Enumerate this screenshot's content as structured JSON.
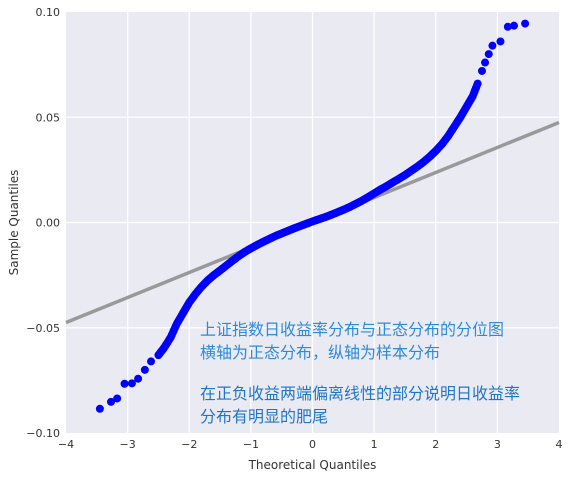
{
  "chart_data": {
    "type": "scatter",
    "title": "",
    "xlabel": "Theoretical Quantiles",
    "ylabel": "Sample Quantiles",
    "xlim": [
      -4,
      4
    ],
    "ylim": [
      -0.1,
      0.1
    ],
    "x_ticks": [
      "−4",
      "−3",
      "−2",
      "−1",
      "0",
      "1",
      "2",
      "3",
      "4"
    ],
    "y_ticks": [
      "−0.10",
      "−0.05",
      "0.00",
      "0.05",
      "0.10"
    ],
    "grid": true,
    "background_color": "#eaeaf2",
    "marker_color": "#0000ff",
    "line_color": "#999999",
    "reference_line": {
      "x": [
        -4,
        4
      ],
      "y": [
        -0.0475,
        0.0475
      ]
    },
    "points": [
      {
        "x": -3.45,
        "y": -0.0885
      },
      {
        "x": -3.27,
        "y": -0.0852
      },
      {
        "x": -3.17,
        "y": -0.0836
      },
      {
        "x": -3.05,
        "y": -0.0766
      },
      {
        "x": -2.93,
        "y": -0.0764
      },
      {
        "x": -2.83,
        "y": -0.0742
      },
      {
        "x": -2.72,
        "y": -0.07
      },
      {
        "x": -2.62,
        "y": -0.066
      },
      {
        "x": -2.5,
        "y": -0.063
      },
      {
        "x": -2.4,
        "y": -0.0592
      },
      {
        "x": -2.3,
        "y": -0.0545
      },
      {
        "x": -2.2,
        "y": -0.048
      },
      {
        "x": -2.1,
        "y": -0.043
      },
      {
        "x": -2.0,
        "y": -0.038
      },
      {
        "x": -1.9,
        "y": -0.034
      },
      {
        "x": -1.8,
        "y": -0.0305
      },
      {
        "x": -1.7,
        "y": -0.0275
      },
      {
        "x": -1.6,
        "y": -0.025
      },
      {
        "x": -1.5,
        "y": -0.0228
      },
      {
        "x": -1.4,
        "y": -0.0205
      },
      {
        "x": -1.3,
        "y": -0.0182
      },
      {
        "x": -1.2,
        "y": -0.016
      },
      {
        "x": -1.1,
        "y": -0.014
      },
      {
        "x": -1.0,
        "y": -0.0123
      },
      {
        "x": -0.9,
        "y": -0.0107
      },
      {
        "x": -0.8,
        "y": -0.0092
      },
      {
        "x": -0.7,
        "y": -0.0078
      },
      {
        "x": -0.6,
        "y": -0.0064
      },
      {
        "x": -0.5,
        "y": -0.0052
      },
      {
        "x": -0.4,
        "y": -0.004
      },
      {
        "x": -0.3,
        "y": -0.0028
      },
      {
        "x": -0.2,
        "y": -0.0017
      },
      {
        "x": -0.1,
        "y": -0.0006
      },
      {
        "x": 0.0,
        "y": 0.0005
      },
      {
        "x": 0.1,
        "y": 0.0015
      },
      {
        "x": 0.2,
        "y": 0.0025
      },
      {
        "x": 0.3,
        "y": 0.0036
      },
      {
        "x": 0.4,
        "y": 0.0048
      },
      {
        "x": 0.5,
        "y": 0.006
      },
      {
        "x": 0.6,
        "y": 0.0073
      },
      {
        "x": 0.7,
        "y": 0.0088
      },
      {
        "x": 0.8,
        "y": 0.0103
      },
      {
        "x": 0.9,
        "y": 0.012
      },
      {
        "x": 1.0,
        "y": 0.0138
      },
      {
        "x": 1.1,
        "y": 0.0156
      },
      {
        "x": 1.2,
        "y": 0.0172
      },
      {
        "x": 1.3,
        "y": 0.019
      },
      {
        "x": 1.4,
        "y": 0.0207
      },
      {
        "x": 1.5,
        "y": 0.0225
      },
      {
        "x": 1.6,
        "y": 0.0245
      },
      {
        "x": 1.7,
        "y": 0.0265
      },
      {
        "x": 1.8,
        "y": 0.0287
      },
      {
        "x": 1.9,
        "y": 0.0312
      },
      {
        "x": 2.0,
        "y": 0.034
      },
      {
        "x": 2.1,
        "y": 0.0372
      },
      {
        "x": 2.2,
        "y": 0.041
      },
      {
        "x": 2.3,
        "y": 0.0455
      },
      {
        "x": 2.4,
        "y": 0.05
      },
      {
        "x": 2.5,
        "y": 0.055
      },
      {
        "x": 2.6,
        "y": 0.06
      },
      {
        "x": 2.68,
        "y": 0.066
      },
      {
        "x": 2.75,
        "y": 0.072
      },
      {
        "x": 2.8,
        "y": 0.076
      },
      {
        "x": 2.86,
        "y": 0.08
      },
      {
        "x": 2.92,
        "y": 0.084
      },
      {
        "x": 3.05,
        "y": 0.086
      },
      {
        "x": 3.17,
        "y": 0.093
      },
      {
        "x": 3.27,
        "y": 0.0935
      },
      {
        "x": 3.45,
        "y": 0.0945
      }
    ],
    "annotations": [
      {
        "lines": [
          "上证指数日收益率分布与正态分布的分位图",
          "横轴为正态分布，纵轴为样本分布"
        ],
        "color": "#2e8bd8"
      },
      {
        "lines": [
          "在正负收益两端偏离线性的部分说明日收益率",
          "分布有明显的肥尾"
        ],
        "color": "#1f76c8"
      }
    ]
  }
}
